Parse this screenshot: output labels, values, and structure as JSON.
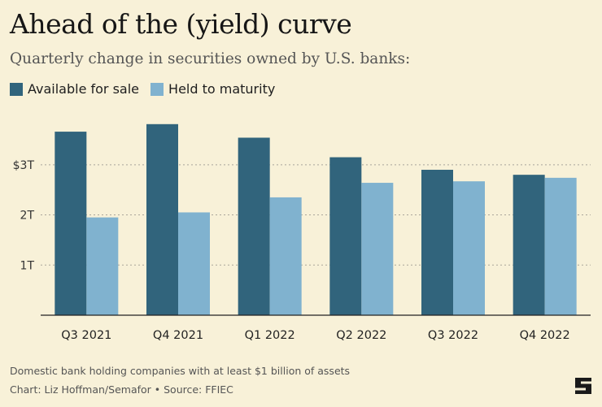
{
  "chart_data": {
    "type": "bar",
    "title": "Ahead of the (yield) curve",
    "subtitle": "Quarterly change in securities owned by U.S. banks:",
    "categories": [
      "Q3 2021",
      "Q4 2021",
      "Q1 2022",
      "Q2 2022",
      "Q3 2022",
      "Q4 2022"
    ],
    "series": [
      {
        "name": "Available for sale",
        "color": "#31647c",
        "values": [
          3.66,
          3.81,
          3.54,
          3.15,
          2.9,
          2.8
        ]
      },
      {
        "name": "Held to maturity",
        "color": "#80b2cf",
        "values": [
          1.95,
          2.05,
          2.35,
          2.64,
          2.67,
          2.74
        ]
      }
    ],
    "yticks": [
      {
        "value": 1,
        "label": "1T"
      },
      {
        "value": 2,
        "label": "2T"
      },
      {
        "value": 3,
        "label": "$3T"
      }
    ],
    "ylim": [
      0,
      4.05
    ],
    "xlabel": "",
    "ylabel": "",
    "grid": true,
    "legend_position": "top-left",
    "footnote": "Domestic bank holding companies with at least $1 billion of assets",
    "credit": "Chart: Liz Hoffman/Semafor • Source: FFIEC"
  }
}
